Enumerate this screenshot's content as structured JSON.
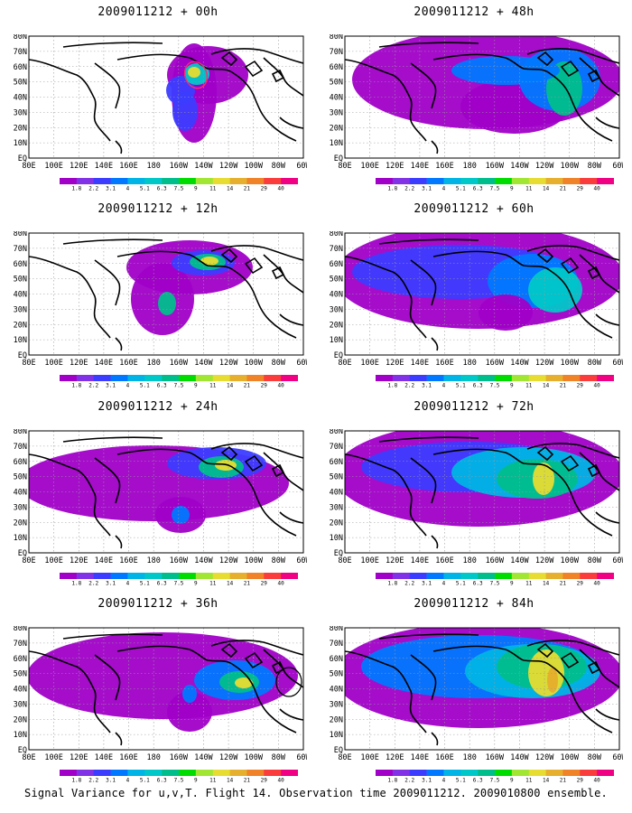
{
  "panels": [
    {
      "title": "2009011212 + 00h",
      "forecast_hour": 0,
      "column": "left",
      "row": 1,
      "marker": "red-circle"
    },
    {
      "title": "2009011212 + 12h",
      "forecast_hour": 12,
      "column": "left",
      "row": 2
    },
    {
      "title": "2009011212 + 24h",
      "forecast_hour": 24,
      "column": "left",
      "row": 3
    },
    {
      "title": "2009011212 + 36h",
      "forecast_hour": 36,
      "column": "left",
      "row": 4,
      "marker": "black-circle"
    },
    {
      "title": "2009011212 + 48h",
      "forecast_hour": 48,
      "column": "right",
      "row": 1
    },
    {
      "title": "2009011212 + 60h",
      "forecast_hour": 60,
      "column": "right",
      "row": 2
    },
    {
      "title": "2009011212 + 72h",
      "forecast_hour": 72,
      "column": "right",
      "row": 3
    },
    {
      "title": "2009011212 + 84h",
      "forecast_hour": 84,
      "column": "right",
      "row": 4
    }
  ],
  "axes": {
    "lon_labels": [
      "80E",
      "100E",
      "120E",
      "140E",
      "160E",
      "180",
      "160W",
      "140W",
      "120W",
      "100W",
      "80W",
      "60W"
    ],
    "lat_labels": [
      "EQ",
      "10N",
      "20N",
      "30N",
      "40N",
      "50N",
      "60N",
      "70N",
      "80N"
    ]
  },
  "colorbar": {
    "labels": [
      "1.8",
      "2.2",
      "3.1",
      "4",
      "5.1",
      "6.3",
      "7.5",
      "9",
      "11",
      "14",
      "21",
      "29",
      "40"
    ],
    "colors": [
      "#a000c8",
      "#8232e6",
      "#3c3cff",
      "#0078ff",
      "#00b4e6",
      "#00c8c8",
      "#00be8c",
      "#00dc00",
      "#a0e632",
      "#e6dc32",
      "#e6af2d",
      "#f08228",
      "#fa3c3c",
      "#f00082"
    ]
  },
  "caption": "Signal Variance for u,v,T. Flight 14. Observation time 2009011212. 2009010800 ensemble."
}
